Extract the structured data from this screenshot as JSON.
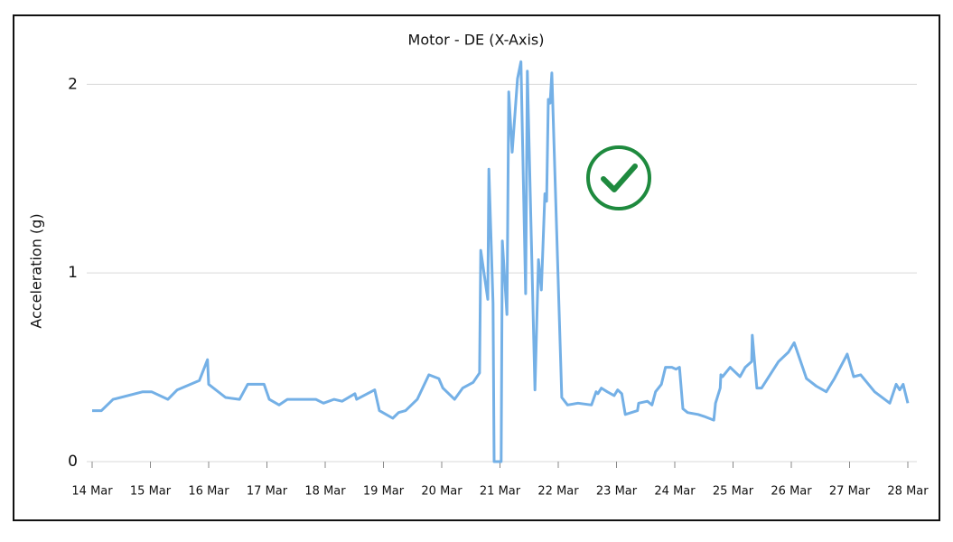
{
  "chart_data": {
    "type": "line",
    "title": "Motor - DE (X-Axis)",
    "y_label": "Acceleration (g)",
    "color": "#74b0e6",
    "grid": true,
    "xlim": [
      14,
      28
    ],
    "xticks": [
      {
        "value": 14,
        "label": "14 Mar"
      },
      {
        "value": 15,
        "label": "15 Mar"
      },
      {
        "value": 16,
        "label": "16 Mar"
      },
      {
        "value": 17,
        "label": "17 Mar"
      },
      {
        "value": 18,
        "label": "18 Mar"
      },
      {
        "value": 19,
        "label": "19 Mar"
      },
      {
        "value": 20,
        "label": "20 Mar"
      },
      {
        "value": 21,
        "label": "21 Mar"
      },
      {
        "value": 22,
        "label": "22 Mar"
      },
      {
        "value": 23,
        "label": "23 Mar"
      },
      {
        "value": 24,
        "label": "24 Mar"
      },
      {
        "value": 25,
        "label": "25 Mar"
      },
      {
        "value": 26,
        "label": "26 Mar"
      },
      {
        "value": 27,
        "label": "27 Mar"
      },
      {
        "value": 28,
        "label": "28 Mar"
      }
    ],
    "ylim": [
      0,
      2.15
    ],
    "yticks": [
      0,
      1,
      2
    ],
    "x": [
      14.0,
      14.16,
      14.36,
      14.87,
      15.02,
      15.3,
      15.46,
      15.84,
      15.98,
      16.0,
      16.29,
      16.53,
      16.67,
      16.95,
      17.04,
      17.21,
      17.35,
      17.84,
      17.97,
      18.15,
      18.29,
      18.51,
      18.54,
      18.85,
      18.93,
      19.16,
      19.26,
      19.38,
      19.58,
      19.78,
      19.95,
      20.02,
      20.22,
      20.36,
      20.54,
      20.65,
      20.67,
      20.79,
      20.81,
      20.88,
      20.9,
      21.02,
      21.04,
      21.12,
      21.15,
      21.21,
      21.3,
      21.36,
      21.44,
      21.47,
      21.52,
      21.55,
      21.6,
      21.66,
      21.71,
      21.77,
      21.8,
      21.83,
      21.86,
      21.89,
      22.06,
      22.16,
      22.34,
      22.57,
      22.65,
      22.68,
      22.74,
      22.84,
      22.96,
      23.02,
      23.09,
      23.15,
      23.36,
      23.38,
      23.53,
      23.61,
      23.67,
      23.77,
      23.84,
      23.95,
      24.02,
      24.08,
      24.14,
      24.22,
      24.4,
      24.5,
      24.67,
      24.7,
      24.78,
      24.79,
      24.82,
      24.95,
      25.12,
      25.21,
      25.32,
      25.33,
      25.41,
      25.49,
      25.78,
      25.95,
      26.05,
      26.26,
      26.43,
      26.6,
      26.74,
      26.91,
      26.96,
      27.07,
      27.19,
      27.43,
      27.69,
      27.8,
      27.86,
      27.92,
      28.0
    ],
    "values": [
      0.27,
      0.27,
      0.33,
      0.37,
      0.37,
      0.33,
      0.38,
      0.43,
      0.54,
      0.41,
      0.34,
      0.33,
      0.41,
      0.41,
      0.33,
      0.3,
      0.33,
      0.33,
      0.31,
      0.33,
      0.32,
      0.36,
      0.33,
      0.38,
      0.27,
      0.23,
      0.26,
      0.27,
      0.33,
      0.46,
      0.44,
      0.39,
      0.33,
      0.39,
      0.42,
      0.47,
      1.12,
      0.86,
      1.55,
      0.84,
      0,
      0,
      1.17,
      0.78,
      1.96,
      1.64,
      2.03,
      2.12,
      0.89,
      2.07,
      1.42,
      1.02,
      0.38,
      1.07,
      0.91,
      1.42,
      1.38,
      1.92,
      1.9,
      2.06,
      0.34,
      0.3,
      0.31,
      0.3,
      0.37,
      0.36,
      0.39,
      0.37,
      0.35,
      0.38,
      0.36,
      0.25,
      0.27,
      0.31,
      0.32,
      0.3,
      0.37,
      0.41,
      0.5,
      0.5,
      0.49,
      0.5,
      0.28,
      0.26,
      0.25,
      0.24,
      0.22,
      0.31,
      0.39,
      0.46,
      0.45,
      0.5,
      0.45,
      0.5,
      0.53,
      0.67,
      0.39,
      0.39,
      0.53,
      0.58,
      0.63,
      0.44,
      0.4,
      0.37,
      0.44,
      0.54,
      0.57,
      0.45,
      0.46,
      0.37,
      0.31,
      0.41,
      0.38,
      0.41,
      0.31
    ]
  }
}
